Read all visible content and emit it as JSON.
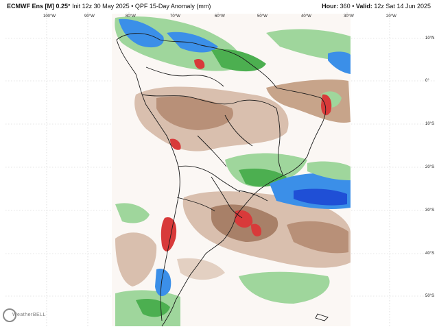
{
  "header": {
    "model": "ECMWF Ens [M] 0.25°",
    "init": "Init 12z 30 May 2025",
    "sep": "•",
    "product": "QPF 15-Day Anomaly (mm)",
    "hour_label": "Hour:",
    "hour_value": "360",
    "valid_label": "Valid:",
    "valid_value": "12z Sat 14 Jun 2025"
  },
  "map": {
    "lon_labels": [
      "100°W",
      "90°W",
      "80°W",
      "70°W",
      "60°W",
      "50°W",
      "40°W",
      "30°W",
      "20°W"
    ],
    "lat_labels": [
      "10°N",
      "0°",
      "10°S",
      "20°S",
      "30°S",
      "40°S",
      "50°S"
    ],
    "colors": {
      "wet_light": "#9fd69c",
      "wet_mid": "#4caf50",
      "wet_heavy": "#3b8fe8",
      "wet_extreme": "#1f4fd6",
      "dry_light": "#e8d8c8",
      "dry_mid": "#c7a48a",
      "dry_heavy": "#9c7a63",
      "red": "#d83a3a"
    }
  },
  "branding": {
    "logo_text": "WeatherBELL"
  }
}
